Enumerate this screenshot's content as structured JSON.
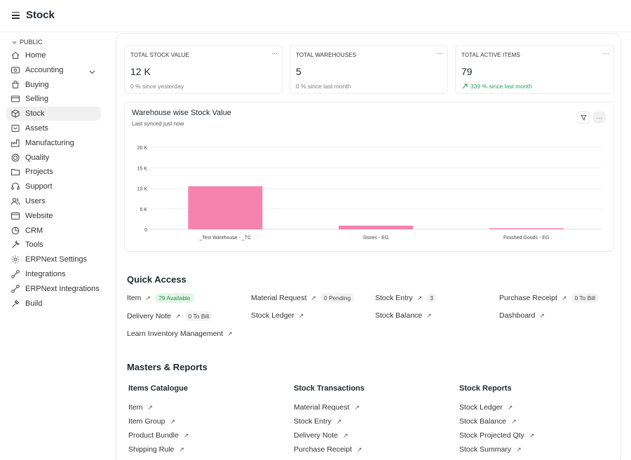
{
  "header": {
    "title": "Stock"
  },
  "sidebar": {
    "section": "PUBLIC",
    "items": [
      {
        "label": "Home",
        "icon": "home-icon"
      },
      {
        "label": "Accounting",
        "icon": "accounting-icon"
      },
      {
        "label": "Buying",
        "icon": "buying-icon"
      },
      {
        "label": "Selling",
        "icon": "selling-icon"
      },
      {
        "label": "Stock",
        "icon": "stock-icon"
      },
      {
        "label": "Assets",
        "icon": "assets-icon"
      },
      {
        "label": "Manufacturing",
        "icon": "manufacturing-icon"
      },
      {
        "label": "Quality",
        "icon": "quality-icon"
      },
      {
        "label": "Projects",
        "icon": "projects-icon"
      },
      {
        "label": "Support",
        "icon": "support-icon"
      },
      {
        "label": "Users",
        "icon": "users-icon"
      },
      {
        "label": "Website",
        "icon": "website-icon"
      },
      {
        "label": "CRM",
        "icon": "crm-icon"
      },
      {
        "label": "Tools",
        "icon": "tools-icon"
      },
      {
        "label": "ERPNext Settings",
        "icon": "settings-icon"
      },
      {
        "label": "Integrations",
        "icon": "integrations-icon"
      },
      {
        "label": "ERPNext Integrations",
        "icon": "integrations-icon"
      },
      {
        "label": "Build",
        "icon": "build-icon"
      }
    ]
  },
  "stats": [
    {
      "title": "TOTAL STOCK VALUE",
      "value": "12 K",
      "sub": "0 % since yesterday"
    },
    {
      "title": "TOTAL WAREHOUSES",
      "value": "5",
      "sub": "0 % since last month"
    },
    {
      "title": "TOTAL ACTIVE ITEMS",
      "value": "79",
      "sub": "339 % since last month"
    }
  ],
  "chart": {
    "title": "Warehouse wise Stock Value",
    "subtitle": "Last synced just now",
    "bar_color": "#f683ae"
  },
  "chart_data": {
    "type": "bar",
    "title": "Warehouse wise Stock Value",
    "categories": [
      "_Test Warehouse - _TC",
      "Stores - EG",
      "Finished Goods - EG"
    ],
    "values": [
      10500,
      900,
      150
    ],
    "yticks": [
      "0",
      "5 K",
      "10 K",
      "15 K",
      "20 K"
    ],
    "ylim": [
      0,
      20000
    ],
    "grid": true
  },
  "quick_access": {
    "title": "Quick Access",
    "items": [
      {
        "label": "Item",
        "badge": "79 Available",
        "badge_style": "green"
      },
      {
        "label": "Material Request",
        "badge": "0 Pending",
        "badge_style": "gray"
      },
      {
        "label": "Stock Entry",
        "badge": "3",
        "badge_style": "gray"
      },
      {
        "label": "Purchase Receipt",
        "badge": "0 To Bill",
        "badge_style": "gray"
      },
      {
        "label": "Delivery Note",
        "badge": "0 To Bill",
        "badge_style": "gray"
      },
      {
        "label": "Stock Ledger",
        "badge": "",
        "badge_style": ""
      },
      {
        "label": "Stock Balance",
        "badge": "",
        "badge_style": ""
      },
      {
        "label": "Dashboard",
        "badge": "",
        "badge_style": ""
      },
      {
        "label": "Learn Inventory Management",
        "badge": "",
        "badge_style": ""
      }
    ]
  },
  "masters": {
    "title": "Masters & Reports",
    "columns": [
      {
        "heading": "Items Catalogue",
        "links": [
          "Item",
          "Item Group",
          "Product Bundle",
          "Shipping Rule"
        ]
      },
      {
        "heading": "Stock Transactions",
        "links": [
          "Material Request",
          "Stock Entry",
          "Delivery Note",
          "Purchase Receipt"
        ]
      },
      {
        "heading": "Stock Reports",
        "links": [
          "Stock Ledger",
          "Stock Balance",
          "Stock Projected Qty",
          "Stock Summary"
        ]
      }
    ]
  },
  "icons": {
    "more": "more-icon",
    "filter": "filter-icon",
    "arrow": "arrow-up-right-icon"
  },
  "arrow_glyph": "↗",
  "dots_glyph": "···"
}
